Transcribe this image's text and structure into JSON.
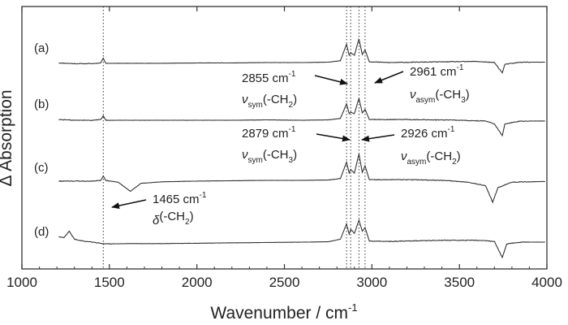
{
  "chart_data": {
    "type": "line",
    "xlabel": "Wavenumber / cm",
    "xlabel_superscript": "-1",
    "ylabel": "Δ Absorption",
    "xlim": [
      1000,
      4000
    ],
    "xticks": [
      1000,
      1500,
      2000,
      2500,
      3000,
      3500,
      4000
    ],
    "yticks": [],
    "grid": false,
    "legend": "none",
    "line_color": "#333333",
    "x_range_plotted": [
      1210,
      3990
    ],
    "reference_lines_x": [
      1465,
      2855,
      2879,
      2926,
      2961
    ],
    "series": [
      {
        "label": "(a)",
        "baseline_y": 0.0,
        "points": [
          [
            1210,
            -0.01
          ],
          [
            1300,
            -0.03
          ],
          [
            1400,
            -0.03
          ],
          [
            1450,
            -0.01
          ],
          [
            1465,
            0.12
          ],
          [
            1480,
            -0.02
          ],
          [
            1600,
            -0.02
          ],
          [
            1800,
            -0.02
          ],
          [
            2000,
            -0.01
          ],
          [
            2200,
            -0.01
          ],
          [
            2400,
            0.0
          ],
          [
            2600,
            0.0
          ],
          [
            2750,
            0.01
          ],
          [
            2820,
            0.05
          ],
          [
            2855,
            0.5
          ],
          [
            2870,
            0.2
          ],
          [
            2879,
            0.27
          ],
          [
            2900,
            0.2
          ],
          [
            2926,
            0.65
          ],
          [
            2945,
            0.22
          ],
          [
            2961,
            0.35
          ],
          [
            2985,
            0.02
          ],
          [
            3100,
            0.0
          ],
          [
            3400,
            0.02
          ],
          [
            3600,
            0.03
          ],
          [
            3700,
            0.0
          ],
          [
            3745,
            -0.28
          ],
          [
            3760,
            -0.05
          ],
          [
            3850,
            0.01
          ],
          [
            3990,
            0.01
          ]
        ]
      },
      {
        "label": "(b)",
        "baseline_y": 0.0,
        "points": [
          [
            1210,
            0.02
          ],
          [
            1300,
            0.0
          ],
          [
            1400,
            0.0
          ],
          [
            1450,
            0.02
          ],
          [
            1465,
            0.12
          ],
          [
            1480,
            0.0
          ],
          [
            1600,
            0.0
          ],
          [
            1800,
            0.0
          ],
          [
            2000,
            0.0
          ],
          [
            2200,
            0.0
          ],
          [
            2400,
            0.01
          ],
          [
            2600,
            0.0
          ],
          [
            2750,
            0.01
          ],
          [
            2820,
            0.05
          ],
          [
            2855,
            0.45
          ],
          [
            2870,
            0.18
          ],
          [
            2879,
            0.22
          ],
          [
            2900,
            0.18
          ],
          [
            2926,
            0.6
          ],
          [
            2945,
            0.2
          ],
          [
            2961,
            0.3
          ],
          [
            2985,
            0.02
          ],
          [
            3200,
            0.02
          ],
          [
            3500,
            0.0
          ],
          [
            3650,
            -0.02
          ],
          [
            3700,
            -0.1
          ],
          [
            3745,
            -0.42
          ],
          [
            3760,
            -0.1
          ],
          [
            3850,
            -0.02
          ],
          [
            3990,
            -0.02
          ]
        ]
      },
      {
        "label": "(c)",
        "baseline_y": 0.0,
        "points": [
          [
            1210,
            -0.02
          ],
          [
            1300,
            -0.02
          ],
          [
            1400,
            -0.02
          ],
          [
            1450,
            0.0
          ],
          [
            1465,
            0.12
          ],
          [
            1480,
            0.0
          ],
          [
            1550,
            -0.05
          ],
          [
            1620,
            -0.3
          ],
          [
            1680,
            -0.08
          ],
          [
            1800,
            -0.04
          ],
          [
            2000,
            -0.02
          ],
          [
            2200,
            -0.01
          ],
          [
            2400,
            0.0
          ],
          [
            2600,
            0.0
          ],
          [
            2750,
            0.01
          ],
          [
            2820,
            0.05
          ],
          [
            2855,
            0.5
          ],
          [
            2870,
            0.2
          ],
          [
            2879,
            0.3
          ],
          [
            2900,
            0.2
          ],
          [
            2926,
            0.72
          ],
          [
            2945,
            0.22
          ],
          [
            2961,
            0.4
          ],
          [
            2985,
            0.02
          ],
          [
            3200,
            0.02
          ],
          [
            3400,
            0.0
          ],
          [
            3550,
            -0.05
          ],
          [
            3650,
            -0.15
          ],
          [
            3690,
            -0.6
          ],
          [
            3720,
            -0.2
          ],
          [
            3800,
            -0.05
          ],
          [
            3990,
            -0.03
          ]
        ]
      },
      {
        "label": "(d)",
        "baseline_y": 0.0,
        "points": [
          [
            1210,
            0.15
          ],
          [
            1240,
            0.12
          ],
          [
            1270,
            0.3
          ],
          [
            1300,
            0.08
          ],
          [
            1350,
            0.03
          ],
          [
            1400,
            0.0
          ],
          [
            1465,
            -0.04
          ],
          [
            1500,
            -0.05
          ],
          [
            1600,
            -0.04
          ],
          [
            1800,
            -0.04
          ],
          [
            2000,
            -0.03
          ],
          [
            2200,
            -0.02
          ],
          [
            2400,
            -0.01
          ],
          [
            2600,
            0.0
          ],
          [
            2750,
            0.01
          ],
          [
            2820,
            0.08
          ],
          [
            2855,
            0.5
          ],
          [
            2870,
            0.22
          ],
          [
            2879,
            0.35
          ],
          [
            2900,
            0.24
          ],
          [
            2926,
            0.6
          ],
          [
            2945,
            0.3
          ],
          [
            2961,
            0.4
          ],
          [
            2985,
            0.03
          ],
          [
            3100,
            0.02
          ],
          [
            3400,
            0.05
          ],
          [
            3600,
            0.05
          ],
          [
            3700,
            0.02
          ],
          [
            3745,
            -0.42
          ],
          [
            3770,
            -0.05
          ],
          [
            3850,
            0.0
          ],
          [
            3990,
            0.0
          ]
        ]
      }
    ],
    "annotations": [
      {
        "value": "2855 cm",
        "sup": "-1",
        "mode_sym": "ν",
        "mode_sub": "sym",
        "mode_group": "(-CH",
        "mode_group_sub": "2",
        "mode_close": ")"
      },
      {
        "value": "2961 cm",
        "sup": "-1",
        "mode_sym": "ν",
        "mode_sub": "asym",
        "mode_group": "(-CH",
        "mode_group_sub": "3",
        "mode_close": ")"
      },
      {
        "value": "2879 cm",
        "sup": "-1",
        "mode_sym": "ν",
        "mode_sub": "sym",
        "mode_group": "(-CH",
        "mode_group_sub": "3",
        "mode_close": ")"
      },
      {
        "value": "2926 cm",
        "sup": "-1",
        "mode_sym": "ν",
        "mode_sub": "asym",
        "mode_group": "(-CH",
        "mode_group_sub": "2",
        "mode_close": ")"
      },
      {
        "value": "1465 cm",
        "sup": "-1",
        "mode_sym": "δ",
        "mode_sub": "",
        "mode_group": "(-CH",
        "mode_group_sub": "2",
        "mode_close": ")"
      }
    ]
  }
}
